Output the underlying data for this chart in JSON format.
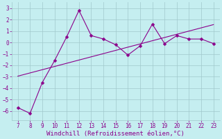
{
  "x": [
    7,
    8,
    9,
    10,
    11,
    12,
    13,
    14,
    15,
    16,
    17,
    18,
    19,
    20,
    21,
    22,
    23
  ],
  "y": [
    -5.7,
    -6.2,
    -3.5,
    -1.6,
    0.5,
    2.8,
    0.6,
    0.3,
    -0.2,
    -1.1,
    -0.3,
    1.6,
    -0.1,
    0.6,
    0.3,
    0.3,
    -0.1
  ],
  "trend_x": [
    7,
    23
  ],
  "line_color": "#8b008b",
  "marker": "D",
  "marker_size": 2.5,
  "xlabel": "Windchill (Refroidissement éolien,°C)",
  "xlim": [
    6.5,
    23.5
  ],
  "ylim": [
    -6.8,
    3.5
  ],
  "yticks": [
    -6,
    -5,
    -4,
    -3,
    -2,
    -1,
    0,
    1,
    2,
    3
  ],
  "xticks": [
    7,
    8,
    9,
    10,
    11,
    12,
    13,
    14,
    15,
    16,
    17,
    18,
    19,
    20,
    21,
    22,
    23
  ],
  "bg_color": "#c5eef0",
  "grid_color": "#a0c8cc",
  "label_color": "#8b008b",
  "font_family": "monospace",
  "tick_fontsize": 5.5,
  "xlabel_fontsize": 6.5
}
